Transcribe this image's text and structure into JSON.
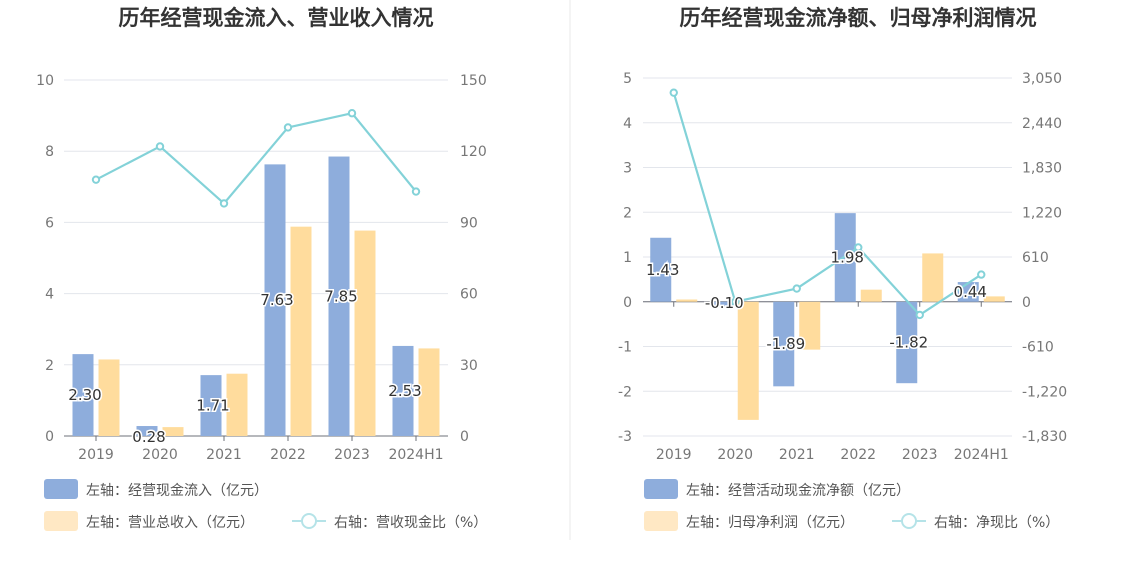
{
  "chart_data": [
    {
      "type": "bar",
      "title": "历年经营现金流入、营业收入情况",
      "categories": [
        "2019",
        "2020",
        "2021",
        "2022",
        "2023",
        "2024H1"
      ],
      "left_axis": {
        "min": 0,
        "max": 10,
        "ticks": [
          "0",
          "2",
          "4",
          "6",
          "8",
          "10"
        ]
      },
      "right_axis": {
        "min": 0,
        "max": 150,
        "ticks": [
          "0",
          "30",
          "60",
          "90",
          "120",
          "150"
        ]
      },
      "series": [
        {
          "name": "左轴：经营现金流入（亿元）",
          "kind": "bar",
          "axis": "left",
          "color": "#8eaddc",
          "values": [
            2.3,
            0.28,
            1.71,
            7.63,
            7.85,
            2.53
          ],
          "labels": [
            "2.30",
            "0.28",
            "1.71",
            "7.63",
            "7.85",
            "2.53"
          ]
        },
        {
          "name": "左轴：营业总收入（亿元）",
          "kind": "bar",
          "axis": "left",
          "color": "#ffdc9d",
          "values": [
            2.15,
            0.25,
            1.75,
            5.88,
            5.77,
            2.46
          ]
        },
        {
          "name": "右轴：营收现金比（%）",
          "kind": "line",
          "axis": "right",
          "color": "#83d2d8",
          "values": [
            108,
            122,
            98,
            130,
            136,
            103
          ]
        }
      ],
      "grid": true,
      "legend_placement": "bottom-left"
    },
    {
      "type": "bar",
      "title": "历年经营现金流净额、归母净利润情况",
      "categories": [
        "2019",
        "2020",
        "2021",
        "2022",
        "2023",
        "2024H1"
      ],
      "left_axis": {
        "min": -3,
        "max": 5,
        "ticks": [
          "-3",
          "-2",
          "-1",
          "0",
          "1",
          "2",
          "3",
          "4",
          "5"
        ]
      },
      "right_axis": {
        "min": -1830,
        "max": 3050,
        "ticks": [
          "-1,830",
          "-1,220",
          "-610",
          "0",
          "610",
          "1,220",
          "1,830",
          "2,440",
          "3,050"
        ]
      },
      "series": [
        {
          "name": "左轴：经营活动现金流净额（亿元）",
          "kind": "bar",
          "axis": "left",
          "color": "#8eaddc",
          "values": [
            1.43,
            -0.1,
            -1.89,
            1.98,
            -1.82,
            0.44
          ],
          "labels": [
            "1.43",
            "-0.10",
            "-1.89",
            "1.98",
            "-1.82",
            "0.44"
          ]
        },
        {
          "name": "左轴：归母净利润（亿元）",
          "kind": "bar",
          "axis": "left",
          "color": "#ffdc9d",
          "values": [
            0.05,
            -2.64,
            -1.07,
            0.27,
            1.08,
            0.12
          ]
        },
        {
          "name": "右轴：净现比（%）",
          "kind": "line",
          "axis": "right",
          "color": "#83d2d8",
          "values": [
            2850,
            0,
            180,
            740,
            -180,
            370
          ]
        }
      ],
      "grid": true,
      "legend_placement": "bottom-left"
    }
  ]
}
